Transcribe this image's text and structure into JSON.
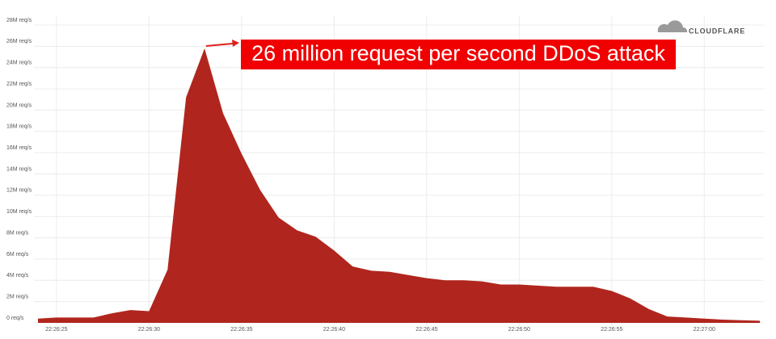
{
  "chart_data": {
    "type": "area",
    "annotation": "26 million request per second DDoS attack",
    "brand": "CLOUDFLARE",
    "color": "#b0261e",
    "grid": true,
    "x": [
      "22:26:24",
      "22:26:25",
      "22:26:26",
      "22:26:27",
      "22:26:28",
      "22:26:29",
      "22:26:30",
      "22:26:31",
      "22:26:32",
      "22:26:33",
      "22:26:34",
      "22:26:35",
      "22:26:36",
      "22:26:37",
      "22:26:38",
      "22:26:39",
      "22:26:40",
      "22:26:41",
      "22:26:42",
      "22:26:43",
      "22:26:44",
      "22:26:45",
      "22:26:46",
      "22:26:47",
      "22:26:48",
      "22:26:49",
      "22:26:50",
      "22:26:51",
      "22:26:52",
      "22:26:53",
      "22:26:54",
      "22:26:55",
      "22:26:56",
      "22:26:57",
      "22:26:58",
      "22:26:59",
      "22:27:00",
      "22:27:01",
      "22:27:02",
      "22:27:03"
    ],
    "values": [
      400000,
      500000,
      500000,
      500000,
      900000,
      1200000,
      1100000,
      5000000,
      21200000,
      25800000,
      19700000,
      15900000,
      12500000,
      9900000,
      8700000,
      8100000,
      6800000,
      5300000,
      4900000,
      4800000,
      4500000,
      4200000,
      4000000,
      4000000,
      3900000,
      3600000,
      3600000,
      3500000,
      3400000,
      3400000,
      3400000,
      3000000,
      2300000,
      1300000,
      600000,
      500000,
      400000,
      300000,
      250000,
      200000
    ],
    "xlim": [
      "22:26:24",
      "22:27:03"
    ],
    "xticks": [
      "22:26:25",
      "22:26:30",
      "22:26:35",
      "22:26:40",
      "22:26:45",
      "22:26:50",
      "22:26:55",
      "22:27:00"
    ],
    "ylim": [
      0,
      28000000
    ],
    "yticks": [
      {
        "value": 0,
        "label": "0 req/s"
      },
      {
        "value": 2000000,
        "label": "2M req/s"
      },
      {
        "value": 4000000,
        "label": "4M req/s"
      },
      {
        "value": 6000000,
        "label": "6M req/s"
      },
      {
        "value": 8000000,
        "label": "8M req/s"
      },
      {
        "value": 10000000,
        "label": "10M req/s"
      },
      {
        "value": 12000000,
        "label": "12M req/s"
      },
      {
        "value": 14000000,
        "label": "14M req/s"
      },
      {
        "value": 16000000,
        "label": "16M req/s"
      },
      {
        "value": 18000000,
        "label": "18M req/s"
      },
      {
        "value": 20000000,
        "label": "20M req/s"
      },
      {
        "value": 22000000,
        "label": "22M req/s"
      },
      {
        "value": 24000000,
        "label": "24M req/s"
      },
      {
        "value": 26000000,
        "label": "26M req/s"
      },
      {
        "value": 28000000,
        "label": "28M req/s"
      }
    ]
  }
}
